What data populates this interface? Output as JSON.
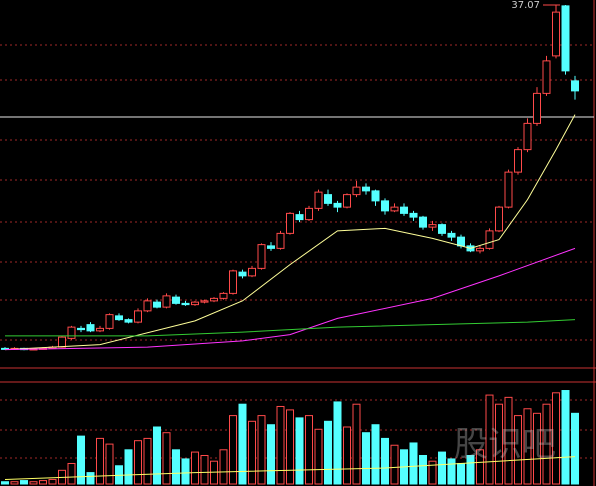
{
  "chart_data": {
    "type": "candlestick",
    "max_label": 37.07,
    "ylim": [
      8.67,
      37.47
    ],
    "ygrid": [
      33.87,
      31.07,
      26.27,
      23.07,
      19.71,
      16.51,
      13.47,
      10.27
    ],
    "reference_line": 28.11,
    "up_color": "#ff4a4a",
    "down_color": "#54ffff",
    "open": [
      9.6,
      9.55,
      9.6,
      9.5,
      9.55,
      9.6,
      9.7,
      10.4,
      11.2,
      11.5,
      11.0,
      11.2,
      12.2,
      11.9,
      11.7,
      12.6,
      13.3,
      12.9,
      13.7,
      13.2,
      13.1,
      13.3,
      13.4,
      13.6,
      14.0,
      15.7,
      15.4,
      16.0,
      17.8,
      17.6,
      18.8,
      20.3,
      19.9,
      20.8,
      21.9,
      21.2,
      20.9,
      21.9,
      22.5,
      22.2,
      21.4,
      20.6,
      20.9,
      20.4,
      20.1,
      19.3,
      19.5,
      18.8,
      18.5,
      17.8,
      17.4,
      17.6,
      19.0,
      20.9,
      23.7,
      25.5,
      27.6,
      30.0,
      33.0,
      37.0,
      31.0
    ],
    "close": [
      9.55,
      9.6,
      9.5,
      9.55,
      9.6,
      9.7,
      10.5,
      11.3,
      11.1,
      11.0,
      11.2,
      12.3,
      11.9,
      11.7,
      12.6,
      13.4,
      12.9,
      13.8,
      13.2,
      13.1,
      13.3,
      13.4,
      13.6,
      14.0,
      15.8,
      15.4,
      16.0,
      17.9,
      17.6,
      18.8,
      20.4,
      19.9,
      20.8,
      22.1,
      21.2,
      20.9,
      21.9,
      22.5,
      22.2,
      21.4,
      20.6,
      20.9,
      20.4,
      20.1,
      19.3,
      19.5,
      18.8,
      18.5,
      17.8,
      17.4,
      17.6,
      19.0,
      20.9,
      23.7,
      25.5,
      27.6,
      30.0,
      32.6,
      36.5,
      31.8,
      30.2
    ],
    "high": [
      9.7,
      9.7,
      9.65,
      9.6,
      9.7,
      9.8,
      10.6,
      11.4,
      11.4,
      11.7,
      11.4,
      12.4,
      12.4,
      12.0,
      12.8,
      13.6,
      13.5,
      14.0,
      13.9,
      13.4,
      13.4,
      13.5,
      13.7,
      14.1,
      15.9,
      15.9,
      16.2,
      18.0,
      18.1,
      19.0,
      20.5,
      20.6,
      21.0,
      22.3,
      22.3,
      21.4,
      22.0,
      23.0,
      22.8,
      22.3,
      21.6,
      21.2,
      21.2,
      20.6,
      20.2,
      19.8,
      19.6,
      19.0,
      18.7,
      18.0,
      17.8,
      19.2,
      21.0,
      23.9,
      25.7,
      28.0,
      30.5,
      33.0,
      37.07,
      37.07,
      31.4
    ],
    "low": [
      9.5,
      9.5,
      9.45,
      9.45,
      9.5,
      9.55,
      9.65,
      10.3,
      10.9,
      10.9,
      10.9,
      11.1,
      11.8,
      11.6,
      11.6,
      12.5,
      12.8,
      12.8,
      13.1,
      13.0,
      13.0,
      13.2,
      13.3,
      13.5,
      13.9,
      15.2,
      15.3,
      15.9,
      17.4,
      17.5,
      18.7,
      19.7,
      19.8,
      20.6,
      21.0,
      20.5,
      20.8,
      21.7,
      21.9,
      21.0,
      20.3,
      20.5,
      20.2,
      19.8,
      19.1,
      19.0,
      18.6,
      18.2,
      17.6,
      17.3,
      17.2,
      17.5,
      18.9,
      20.8,
      23.5,
      25.3,
      27.4,
      29.8,
      32.8,
      31.5,
      29.5
    ],
    "moving_averages": [
      {
        "color": "#ffff99",
        "x": [
          0,
          10,
          20,
          25,
          30,
          35,
          40,
          45,
          49,
          52,
          55,
          58,
          60
        ],
        "values": [
          9.5,
          9.9,
          11.8,
          13.4,
          16.3,
          19.0,
          19.2,
          18.4,
          17.6,
          18.3,
          21.5,
          25.5,
          28.3
        ]
      },
      {
        "color": "#ff33ff",
        "x": [
          0,
          15,
          25,
          30,
          35,
          45,
          52,
          60
        ],
        "values": [
          9.5,
          9.7,
          10.2,
          10.7,
          12.0,
          13.6,
          15.4,
          17.6
        ]
      },
      {
        "color": "#33cc33",
        "x": [
          0,
          15,
          25,
          35,
          45,
          55,
          60
        ],
        "values": [
          10.6,
          10.6,
          10.9,
          11.3,
          11.5,
          11.7,
          11.9
        ]
      }
    ],
    "volume": {
      "ylim": [
        0,
        100
      ],
      "grid": [
        73.7,
        47.4,
        22.8
      ],
      "values": [
        2,
        2,
        3,
        2,
        3,
        4,
        12,
        18,
        42,
        10,
        40,
        35,
        16,
        30,
        38,
        40,
        50,
        45,
        30,
        22,
        28,
        25,
        20,
        30,
        60,
        70,
        55,
        60,
        52,
        68,
        65,
        58,
        60,
        48,
        55,
        72,
        50,
        70,
        45,
        52,
        40,
        34,
        30,
        36,
        25,
        20,
        28,
        22,
        18,
        25,
        30,
        78,
        70,
        76,
        60,
        66,
        62,
        70,
        80,
        82,
        62
      ],
      "average": {
        "color": "#ffff66",
        "x": [
          0,
          20,
          40,
          60
        ],
        "values": [
          4,
          10,
          14,
          24
        ]
      }
    },
    "watermark": "股识吧"
  }
}
